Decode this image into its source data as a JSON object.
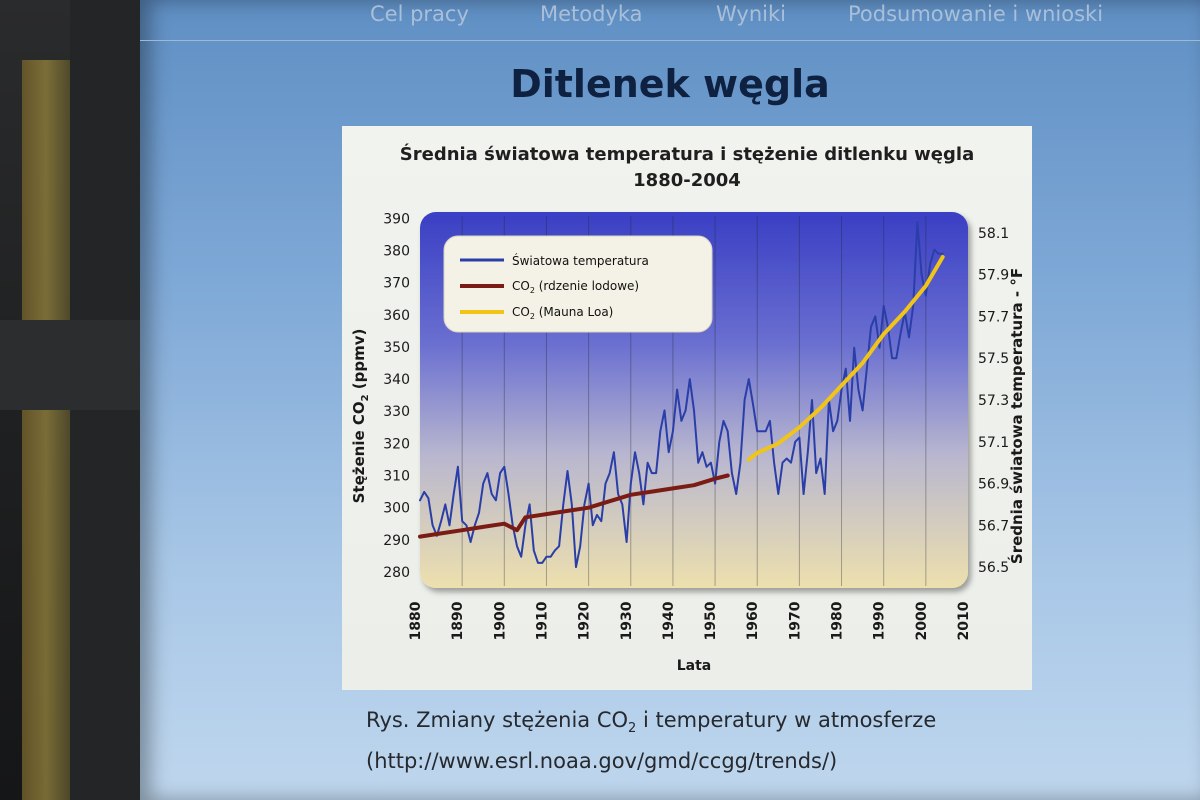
{
  "nav": {
    "items": [
      "Cel pracy",
      "Metodyka",
      "Wyniki",
      "Podsumowanie i wnioski"
    ]
  },
  "slide": {
    "title": "Ditlenek węgla"
  },
  "chart_data": {
    "type": "line",
    "title_line1": "Średnia światowa temperatura i stężenie ditlenku węgla",
    "title_line2": "1880-2004",
    "xlabel": "Lata",
    "ylabel_left_prefix": "Stężenie CO",
    "ylabel_left_sub": "2",
    "ylabel_left_suffix": " (ppmv)",
    "ylabel_right": "Średnia światowa temperatura - °F",
    "xlim": [
      1880,
      2010
    ],
    "ylim_left": [
      275,
      392
    ],
    "ylim_right": [
      56.4,
      58.2
    ],
    "x_ticks": [
      1880,
      1890,
      1900,
      1910,
      1920,
      1930,
      1940,
      1950,
      1960,
      1970,
      1980,
      1990,
      2000,
      2010
    ],
    "y_ticks_left": [
      280,
      290,
      300,
      310,
      320,
      330,
      340,
      350,
      360,
      370,
      380,
      390
    ],
    "y_ticks_right": [
      "56.5",
      "56.7",
      "56.9",
      "57.1",
      "57.3",
      "57.5",
      "57.7",
      "57.9",
      "58.1"
    ],
    "legend_placement": "top-left",
    "legend": [
      {
        "label": "Światowa temperatura",
        "color": "#2a3ea8"
      },
      {
        "label_prefix": "CO",
        "label_sub": "2",
        "label_suffix": " (rdzenie lodowe)",
        "color": "#7a1c14"
      },
      {
        "label_prefix": "CO",
        "label_sub": "2",
        "label_suffix": " (Mauna Loa)",
        "color": "#f0c419"
      }
    ],
    "series": [
      {
        "name": "Światowa temperatura",
        "axis": "right",
        "color": "#2a3ea8",
        "x": [
          1880,
          1881,
          1882,
          1883,
          1884,
          1885,
          1886,
          1887,
          1888,
          1889,
          1890,
          1891,
          1892,
          1893,
          1894,
          1895,
          1896,
          1897,
          1898,
          1899,
          1900,
          1901,
          1902,
          1903,
          1904,
          1905,
          1906,
          1907,
          1908,
          1909,
          1910,
          1911,
          1912,
          1913,
          1914,
          1915,
          1916,
          1917,
          1918,
          1919,
          1920,
          1921,
          1922,
          1923,
          1924,
          1925,
          1926,
          1927,
          1928,
          1929,
          1930,
          1931,
          1932,
          1933,
          1934,
          1935,
          1936,
          1937,
          1938,
          1939,
          1940,
          1941,
          1942,
          1943,
          1944,
          1945,
          1946,
          1947,
          1948,
          1949,
          1950,
          1951,
          1952,
          1953,
          1954,
          1955,
          1956,
          1957,
          1958,
          1959,
          1960,
          1961,
          1962,
          1963,
          1964,
          1965,
          1966,
          1967,
          1968,
          1969,
          1970,
          1971,
          1972,
          1973,
          1974,
          1975,
          1976,
          1977,
          1978,
          1979,
          1980,
          1981,
          1982,
          1983,
          1984,
          1985,
          1986,
          1987,
          1988,
          1989,
          1990,
          1991,
          1992,
          1993,
          1994,
          1995,
          1996,
          1997,
          1998,
          1999,
          2000,
          2001,
          2002,
          2003,
          2004
        ],
        "values": [
          56.82,
          56.86,
          56.83,
          56.7,
          56.65,
          56.72,
          56.8,
          56.7,
          56.85,
          56.98,
          56.72,
          56.7,
          56.62,
          56.7,
          56.76,
          56.9,
          56.95,
          56.85,
          56.82,
          56.95,
          56.98,
          56.85,
          56.7,
          56.6,
          56.55,
          56.7,
          56.8,
          56.58,
          56.52,
          56.52,
          56.55,
          56.55,
          56.58,
          56.6,
          56.8,
          56.96,
          56.8,
          56.5,
          56.6,
          56.8,
          56.9,
          56.7,
          56.75,
          56.72,
          56.9,
          56.95,
          57.05,
          56.85,
          56.8,
          56.62,
          56.9,
          57.05,
          56.95,
          56.8,
          57.0,
          56.95,
          56.95,
          57.15,
          57.25,
          57.05,
          57.15,
          57.35,
          57.2,
          57.25,
          57.4,
          57.25,
          57.0,
          57.05,
          56.98,
          57.0,
          56.9,
          57.1,
          57.2,
          57.15,
          56.95,
          56.85,
          57.0,
          57.3,
          57.4,
          57.28,
          57.15,
          57.15,
          57.15,
          57.2,
          57.0,
          56.85,
          57.0,
          57.02,
          57.0,
          57.1,
          57.12,
          56.85,
          57.05,
          57.3,
          56.95,
          57.02,
          56.85,
          57.3,
          57.15,
          57.2,
          57.35,
          57.45,
          57.2,
          57.55,
          57.35,
          57.25,
          57.45,
          57.65,
          57.7,
          57.55,
          57.75,
          57.65,
          57.5,
          57.5,
          57.62,
          57.72,
          57.6,
          57.75,
          58.15,
          57.9,
          57.8,
          57.95,
          58.02,
          58.0,
          58.0
        ]
      },
      {
        "name": "CO2 (rdzenie lodowe)",
        "axis": "left",
        "color": "#7a1c14",
        "x": [
          1880,
          1885,
          1890,
          1895,
          1900,
          1903,
          1905,
          1910,
          1915,
          1920,
          1925,
          1930,
          1935,
          1940,
          1945,
          1950,
          1953
        ],
        "values": [
          291,
          292,
          293,
          294,
          295,
          293,
          297,
          298,
          299,
          300,
          302,
          304,
          305,
          306,
          307,
          309,
          310
        ]
      },
      {
        "name": "CO2 (Mauna Loa)",
        "axis": "left",
        "color": "#f0c419",
        "x": [
          1958,
          1960,
          1965,
          1970,
          1975,
          1980,
          1985,
          1990,
          1995,
          2000,
          2004
        ],
        "values": [
          315,
          317,
          320,
          325,
          331,
          338,
          345,
          354,
          361,
          369,
          378
        ]
      }
    ]
  },
  "caption": {
    "prefix": "Rys. Zmiany stężenia CO",
    "sub": "2",
    "suffix": " i temperatury w atmosferze",
    "link": "(http://www.esrl.noaa.gov/gmd/ccgg/trends/)"
  },
  "colors": {
    "screen_blue": "#7ea8d6",
    "plot_top": "#3a3fc4",
    "plot_bottom": "#e8dcb0",
    "title_navy": "#0f2140"
  }
}
